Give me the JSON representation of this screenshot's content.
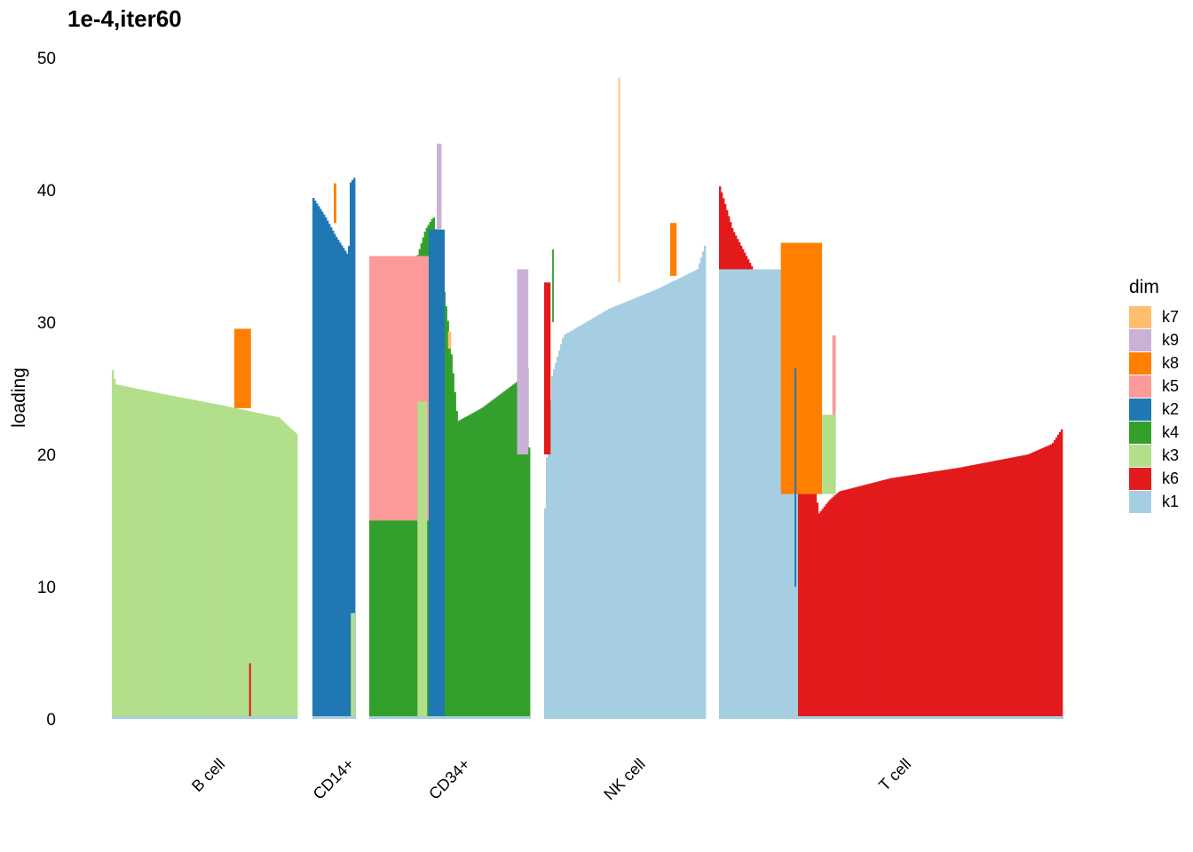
{
  "chart_data": {
    "type": "bar",
    "title": "1e-4,iter60",
    "xlabel": "",
    "ylabel": "loading",
    "ylim": [
      0,
      50
    ],
    "yticks": [
      0,
      10,
      20,
      30,
      40,
      50
    ],
    "grid": false,
    "legend": {
      "title": "dim",
      "position": "right",
      "entries": [
        {
          "name": "k7",
          "color": "#FDBF6F"
        },
        {
          "name": "k9",
          "color": "#CAB2D6"
        },
        {
          "name": "k8",
          "color": "#FF7F00"
        },
        {
          "name": "k5",
          "color": "#FB9A99"
        },
        {
          "name": "k2",
          "color": "#1F78B4"
        },
        {
          "name": "k4",
          "color": "#33A02C"
        },
        {
          "name": "k3",
          "color": "#B2DF8A"
        },
        {
          "name": "k6",
          "color": "#E31A1C"
        },
        {
          "name": "k1",
          "color": "#A6CEE3"
        }
      ]
    },
    "groups": [
      {
        "name": "B cell",
        "dominant": "k3",
        "profile": [
          [
            0,
            26.7
          ],
          [
            0.02,
            25.3
          ],
          [
            0.3,
            24.5
          ],
          [
            0.6,
            23.7
          ],
          [
            0.9,
            22.8
          ],
          [
            1,
            21.5
          ]
        ],
        "overlays": [
          {
            "dim": "k8",
            "from": 0.66,
            "to": 0.75,
            "bottom": 23.5,
            "top": 29.5
          },
          {
            "dim": "k6",
            "from": 0.74,
            "to": 0.75,
            "bottom": 0,
            "top": 4.2
          }
        ]
      },
      {
        "name": "CD14+",
        "dominant": "k2",
        "profile": [
          [
            0,
            39.5
          ],
          [
            0.3,
            38.0
          ],
          [
            0.55,
            36.5
          ],
          [
            0.85,
            35.0
          ],
          [
            0.88,
            40.5
          ],
          [
            1,
            41.0
          ]
        ],
        "overlays": [
          {
            "dim": "k8",
            "from": 0.5,
            "to": 0.56,
            "bottom": 37.5,
            "top": 40.5
          },
          {
            "dim": "k3",
            "from": 0.9,
            "to": 1,
            "bottom": 0,
            "top": 8
          }
        ]
      },
      {
        "name": "CD34+",
        "dominant": "k4",
        "profile": [
          [
            0,
            28
          ],
          [
            0.05,
            35
          ],
          [
            0.3,
            35
          ],
          [
            0.35,
            37
          ],
          [
            0.4,
            38
          ],
          [
            0.45,
            34
          ],
          [
            0.5,
            29
          ],
          [
            0.55,
            22.5
          ],
          [
            0.7,
            23.5
          ],
          [
            0.92,
            25.5
          ],
          [
            0.95,
            30
          ],
          [
            0.97,
            34
          ],
          [
            1,
            17.5
          ]
        ],
        "overlays": [
          {
            "dim": "k5",
            "from": 0,
            "to": 0.38,
            "bottom": 15,
            "top": 35
          },
          {
            "dim": "k2",
            "from": 0.37,
            "to": 0.47,
            "bottom": 0,
            "top": 37
          },
          {
            "dim": "k9",
            "from": 0.42,
            "to": 0.45,
            "bottom": 37,
            "top": 43.5
          },
          {
            "dim": "k3",
            "from": 0.3,
            "to": 0.36,
            "bottom": 0,
            "top": 24
          },
          {
            "dim": "k9",
            "from": 0.92,
            "to": 0.99,
            "bottom": 20,
            "top": 34
          },
          {
            "dim": "k7",
            "from": 0.49,
            "to": 0.51,
            "bottom": 28,
            "top": 29.3
          }
        ]
      },
      {
        "name": "NK cell",
        "dominant": "k1",
        "profile": [
          [
            0,
            14
          ],
          [
            0.02,
            21
          ],
          [
            0.05,
            26
          ],
          [
            0.12,
            29
          ],
          [
            0.4,
            31
          ],
          [
            0.7,
            32.5
          ],
          [
            0.95,
            34
          ],
          [
            1,
            36
          ]
        ],
        "overlays": [
          {
            "dim": "k6",
            "from": 0,
            "to": 0.04,
            "bottom": 20,
            "top": 33
          },
          {
            "dim": "k4",
            "from": 0.05,
            "to": 0.06,
            "bottom": 30,
            "top": 35.5
          },
          {
            "dim": "k7",
            "from": 0.46,
            "to": 0.47,
            "bottom": 33,
            "top": 48.5
          },
          {
            "dim": "k8",
            "from": 0.78,
            "to": 0.82,
            "bottom": 33.5,
            "top": 37.5
          }
        ]
      },
      {
        "name": "T cell",
        "dominant": "k6",
        "profile": [
          [
            0,
            40.5
          ],
          [
            0.04,
            37
          ],
          [
            0.1,
            34
          ],
          [
            0.15,
            32
          ],
          [
            0.2,
            28
          ],
          [
            0.23,
            25.5
          ],
          [
            0.26,
            22
          ],
          [
            0.29,
            15.5
          ],
          [
            0.32,
            16.5
          ],
          [
            0.35,
            17.2
          ],
          [
            0.5,
            18.2
          ],
          [
            0.7,
            19
          ],
          [
            0.9,
            20
          ],
          [
            0.97,
            20.8
          ],
          [
            1,
            22
          ]
        ],
        "overlays": [
          {
            "dim": "k1",
            "from": 0,
            "to": 0.23,
            "bottom": 0,
            "top": 34
          },
          {
            "dim": "k8",
            "from": 0.18,
            "to": 0.3,
            "bottom": 17,
            "top": 36
          },
          {
            "dim": "k5",
            "from": 0.33,
            "to": 0.34,
            "bottom": 18,
            "top": 29
          },
          {
            "dim": "k2",
            "from": 0.22,
            "to": 0.225,
            "bottom": 10,
            "top": 26.5
          },
          {
            "dim": "k3",
            "from": 0.3,
            "to": 0.34,
            "bottom": 17,
            "top": 23
          }
        ]
      }
    ]
  }
}
